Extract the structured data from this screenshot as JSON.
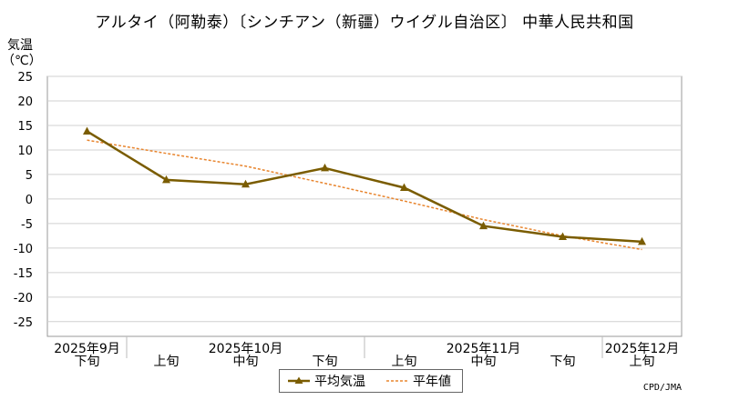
{
  "chart_data": {
    "type": "line",
    "title": "アルタイ（阿勒泰）〔シンチアン（新疆）ウイグル自治区〕 中華人民共和国",
    "ylabel_lines": [
      "気温",
      "（℃）"
    ],
    "ylim": [
      -28,
      25
    ],
    "yticks": [
      25,
      20,
      15,
      10,
      5,
      0,
      -5,
      -10,
      -15,
      -20,
      -25
    ],
    "categories": [
      "下旬",
      "上旬",
      "中旬",
      "下旬",
      "上旬",
      "中旬",
      "下旬",
      "上旬"
    ],
    "month_labels": [
      {
        "label": "2025年9月",
        "at": 0
      },
      {
        "label": "2025年10月",
        "at": 2
      },
      {
        "label": "2025年11月",
        "at": 5
      },
      {
        "label": "2025年12月",
        "at": 7
      }
    ],
    "grid": true,
    "legend_position": "bottom",
    "series": [
      {
        "name": "平均気温",
        "values": [
          13.8,
          3.9,
          3.0,
          6.3,
          2.3,
          -5.5,
          -7.7,
          -8.7
        ],
        "color": "#7a5c00",
        "style": "solid",
        "marker": "triangle"
      },
      {
        "name": "平年値",
        "values": [
          12.0,
          9.3,
          6.7,
          3.2,
          -0.4,
          -4.2,
          -7.5,
          -10.3
        ],
        "color": "#e8852e",
        "style": "dashed",
        "marker": "none"
      }
    ]
  },
  "credit": "CPD/JMA"
}
